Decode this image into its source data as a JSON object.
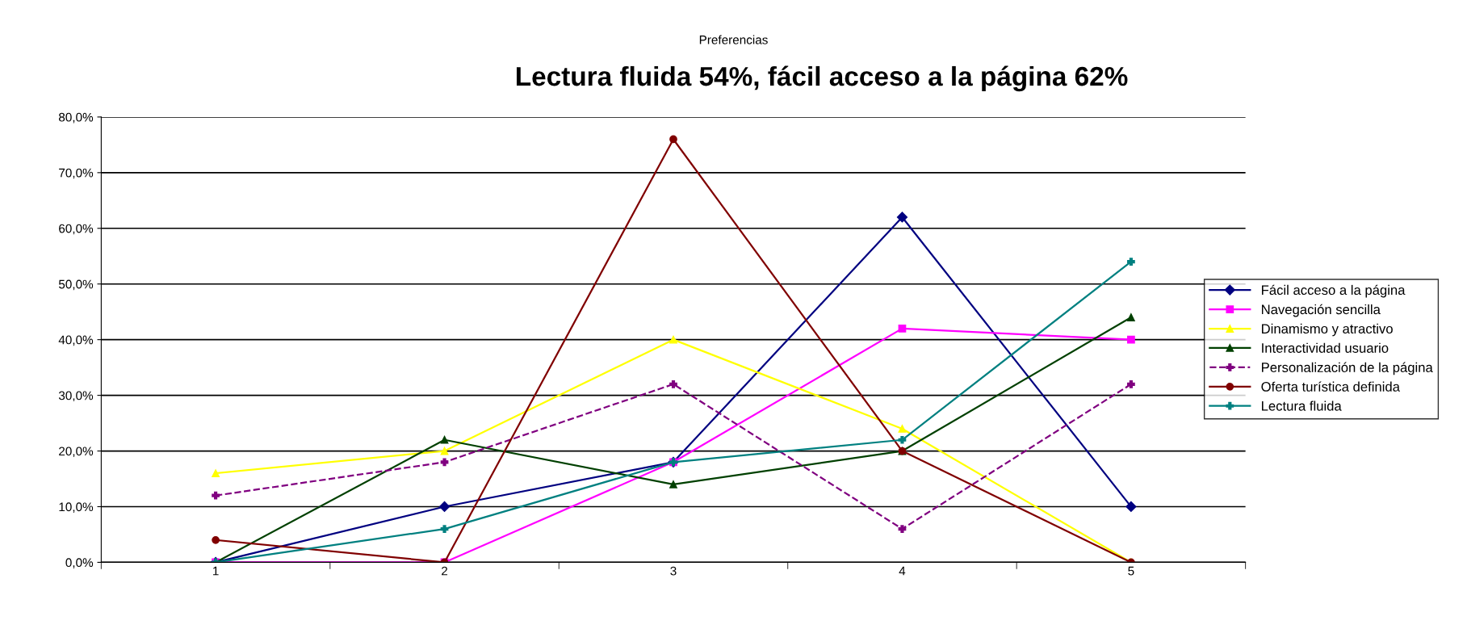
{
  "chart_data": {
    "type": "line",
    "title": "Preferencias",
    "subtitle": "Lectura fluida 54%, fácil acceso a la página 62%",
    "categories": [
      "1",
      "2",
      "3",
      "4",
      "5"
    ],
    "series": [
      {
        "name": "Fácil acceso a la página",
        "color": "#000080",
        "marker": "diamond",
        "values": [
          0,
          10,
          18,
          62,
          10
        ]
      },
      {
        "name": "Navegación sencilla",
        "color": "#ff00ff",
        "marker": "square",
        "values": [
          0,
          0,
          18,
          42,
          40
        ]
      },
      {
        "name": "Dinamismo y atractivo",
        "color": "#ffff00",
        "marker": "triangle",
        "values": [
          16,
          20,
          40,
          24,
          0
        ]
      },
      {
        "name": "Interactividad usuario",
        "color": "#004000",
        "marker": "triangle",
        "values": [
          0,
          22,
          14,
          20,
          44
        ]
      },
      {
        "name": "Personalización de la página",
        "color": "#800080",
        "marker": "cross",
        "line_style": "dashed",
        "values": [
          12,
          18,
          32,
          6,
          32
        ]
      },
      {
        "name": "Oferta turística definida",
        "color": "#800000",
        "marker": "circle",
        "values": [
          4,
          0,
          76,
          20,
          0
        ]
      },
      {
        "name": "Lectura fluida",
        "color": "#008080",
        "marker": "cross",
        "values": [
          0,
          6,
          18,
          22,
          54
        ]
      }
    ],
    "ylim": [
      0,
      80
    ],
    "yticks": [
      {
        "value": 0,
        "label": "0,0%"
      },
      {
        "value": 10,
        "label": "10,0%"
      },
      {
        "value": 20,
        "label": "20,0%"
      },
      {
        "value": 30,
        "label": "30,0%"
      },
      {
        "value": 40,
        "label": "40,0%"
      },
      {
        "value": 50,
        "label": "50,0%"
      },
      {
        "value": 60,
        "label": "60,0%"
      },
      {
        "value": 70,
        "label": "70,0%"
      },
      {
        "value": 80,
        "label": "80,0%"
      }
    ],
    "grid": "y",
    "legend": "right"
  }
}
